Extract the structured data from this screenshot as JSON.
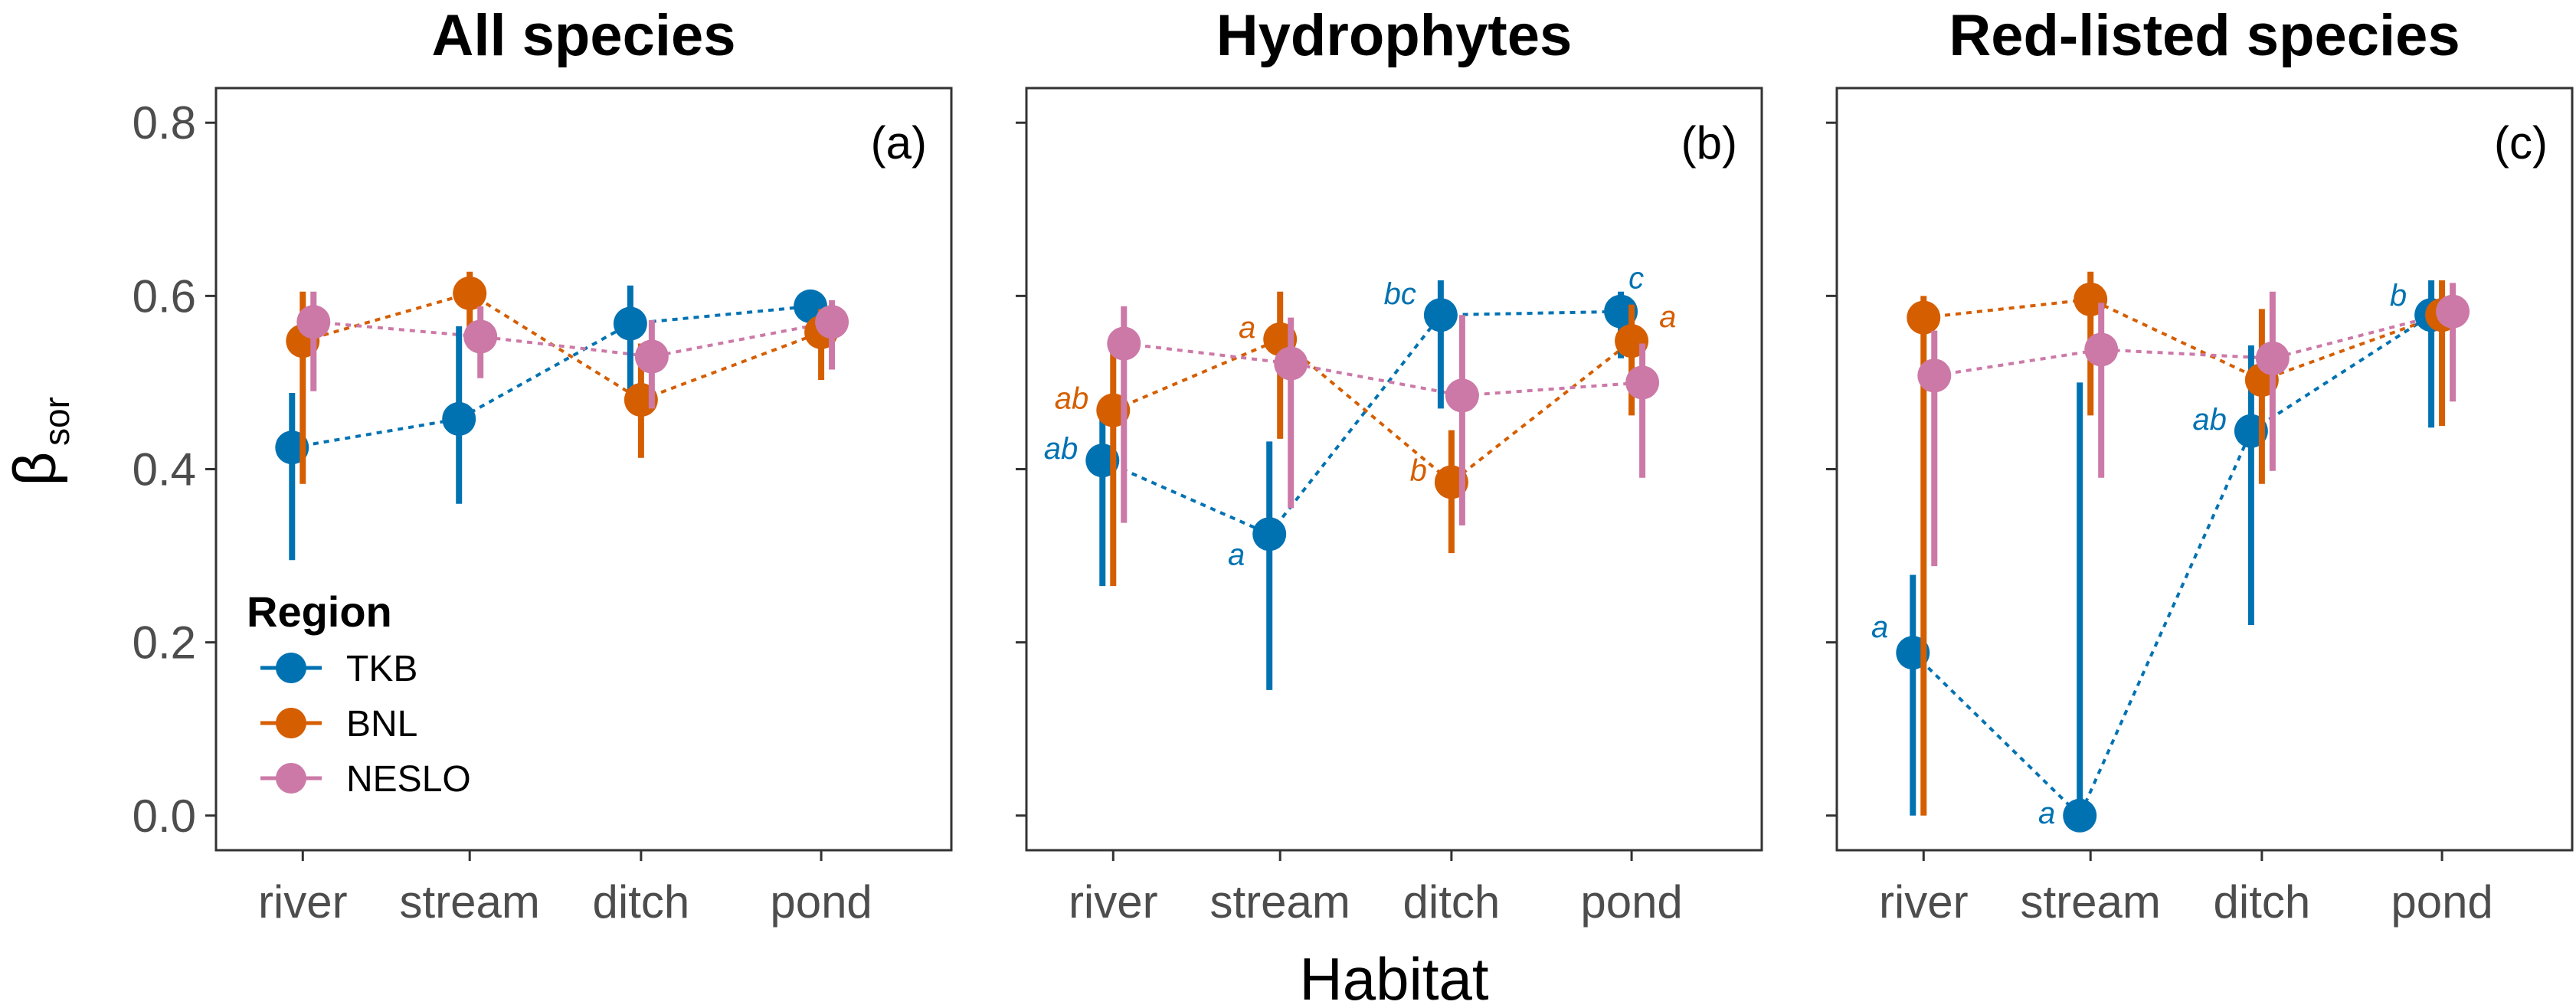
{
  "chart_data": {
    "type": "scatter",
    "habitats": [
      "river",
      "stream",
      "ditch",
      "pond"
    ],
    "ylabel_main": "β",
    "ylabel_sub": "sor",
    "xlabel": "Habitat",
    "ylim": [
      -0.04,
      0.84
    ],
    "yticks": [
      "0.0",
      "0.2",
      "0.4",
      "0.6",
      "0.8"
    ],
    "ytick_values": [
      0.0,
      0.2,
      0.4,
      0.6,
      0.8
    ],
    "legend": {
      "title": "Region",
      "entries": [
        {
          "name": "TKB",
          "color": "#0072B2"
        },
        {
          "name": "BNL",
          "color": "#D55E00"
        },
        {
          "name": "NESLO",
          "color": "#CC79A7"
        }
      ]
    },
    "panels": [
      {
        "title": "All species",
        "tag": "(a)",
        "series": [
          {
            "name": "TKB",
            "color": "#0072B2",
            "values": [
              0.425,
              0.458,
              0.568,
              0.588
            ],
            "lower": [
              0.295,
              0.36,
              0.49,
              0.555
            ],
            "upper": [
              0.488,
              0.565,
              0.612,
              0.605
            ],
            "labels": [
              "",
              "",
              "",
              ""
            ]
          },
          {
            "name": "BNL",
            "color": "#D55E00",
            "values": [
              0.548,
              0.603,
              0.48,
              0.558
            ],
            "lower": [
              0.383,
              0.555,
              0.413,
              0.503
            ],
            "upper": [
              0.605,
              0.628,
              0.545,
              0.585
            ],
            "labels": [
              "",
              "",
              "",
              ""
            ]
          },
          {
            "name": "NESLO",
            "color": "#CC79A7",
            "values": [
              0.57,
              0.553,
              0.53,
              0.57
            ],
            "lower": [
              0.49,
              0.505,
              0.47,
              0.515
            ],
            "upper": [
              0.605,
              0.588,
              0.572,
              0.595
            ],
            "labels": [
              "",
              "",
              "",
              ""
            ]
          }
        ]
      },
      {
        "title": "Hydrophytes",
        "tag": "(b)",
        "series": [
          {
            "name": "TKB",
            "color": "#0072B2",
            "values": [
              0.41,
              0.325,
              0.578,
              0.582
            ],
            "lower": [
              0.265,
              0.145,
              0.47,
              0.528
            ],
            "upper": [
              0.47,
              0.432,
              0.618,
              0.605
            ],
            "labels": [
              "ab",
              "a",
              "bc",
              "c"
            ]
          },
          {
            "name": "BNL",
            "color": "#D55E00",
            "values": [
              0.468,
              0.55,
              0.385,
              0.548
            ],
            "lower": [
              0.265,
              0.435,
              0.303,
              0.462
            ],
            "upper": [
              0.535,
              0.605,
              0.445,
              0.59
            ],
            "labels": [
              "ab",
              "a",
              "b",
              "a"
            ]
          },
          {
            "name": "NESLO",
            "color": "#CC79A7",
            "values": [
              0.545,
              0.522,
              0.485,
              0.5
            ],
            "lower": [
              0.338,
              0.355,
              0.335,
              0.39
            ],
            "upper": [
              0.588,
              0.575,
              0.578,
              0.545
            ],
            "labels": [
              "",
              "",
              "",
              ""
            ]
          }
        ]
      },
      {
        "title": "Red-listed species",
        "tag": "(c)",
        "series": [
          {
            "name": "TKB",
            "color": "#0072B2",
            "values": [
              0.188,
              0.0,
              0.444,
              0.578
            ],
            "lower": [
              0.0,
              0.0,
              0.22,
              0.448
            ],
            "upper": [
              0.278,
              0.5,
              0.543,
              0.618
            ],
            "labels": [
              "a",
              "a",
              "ab",
              "b"
            ]
          },
          {
            "name": "BNL",
            "color": "#D55E00",
            "values": [
              0.575,
              0.596,
              0.503,
              0.578
            ],
            "lower": [
              0.0,
              0.462,
              0.383,
              0.45
            ],
            "upper": [
              0.6,
              0.628,
              0.585,
              0.618
            ],
            "labels": [
              "",
              "",
              "",
              ""
            ]
          },
          {
            "name": "NESLO",
            "color": "#CC79A7",
            "values": [
              0.508,
              0.538,
              0.528,
              0.582
            ],
            "lower": [
              0.288,
              0.39,
              0.398,
              0.478
            ],
            "upper": [
              0.56,
              0.592,
              0.605,
              0.615
            ],
            "labels": [
              "",
              "",
              "",
              ""
            ]
          }
        ]
      }
    ]
  }
}
